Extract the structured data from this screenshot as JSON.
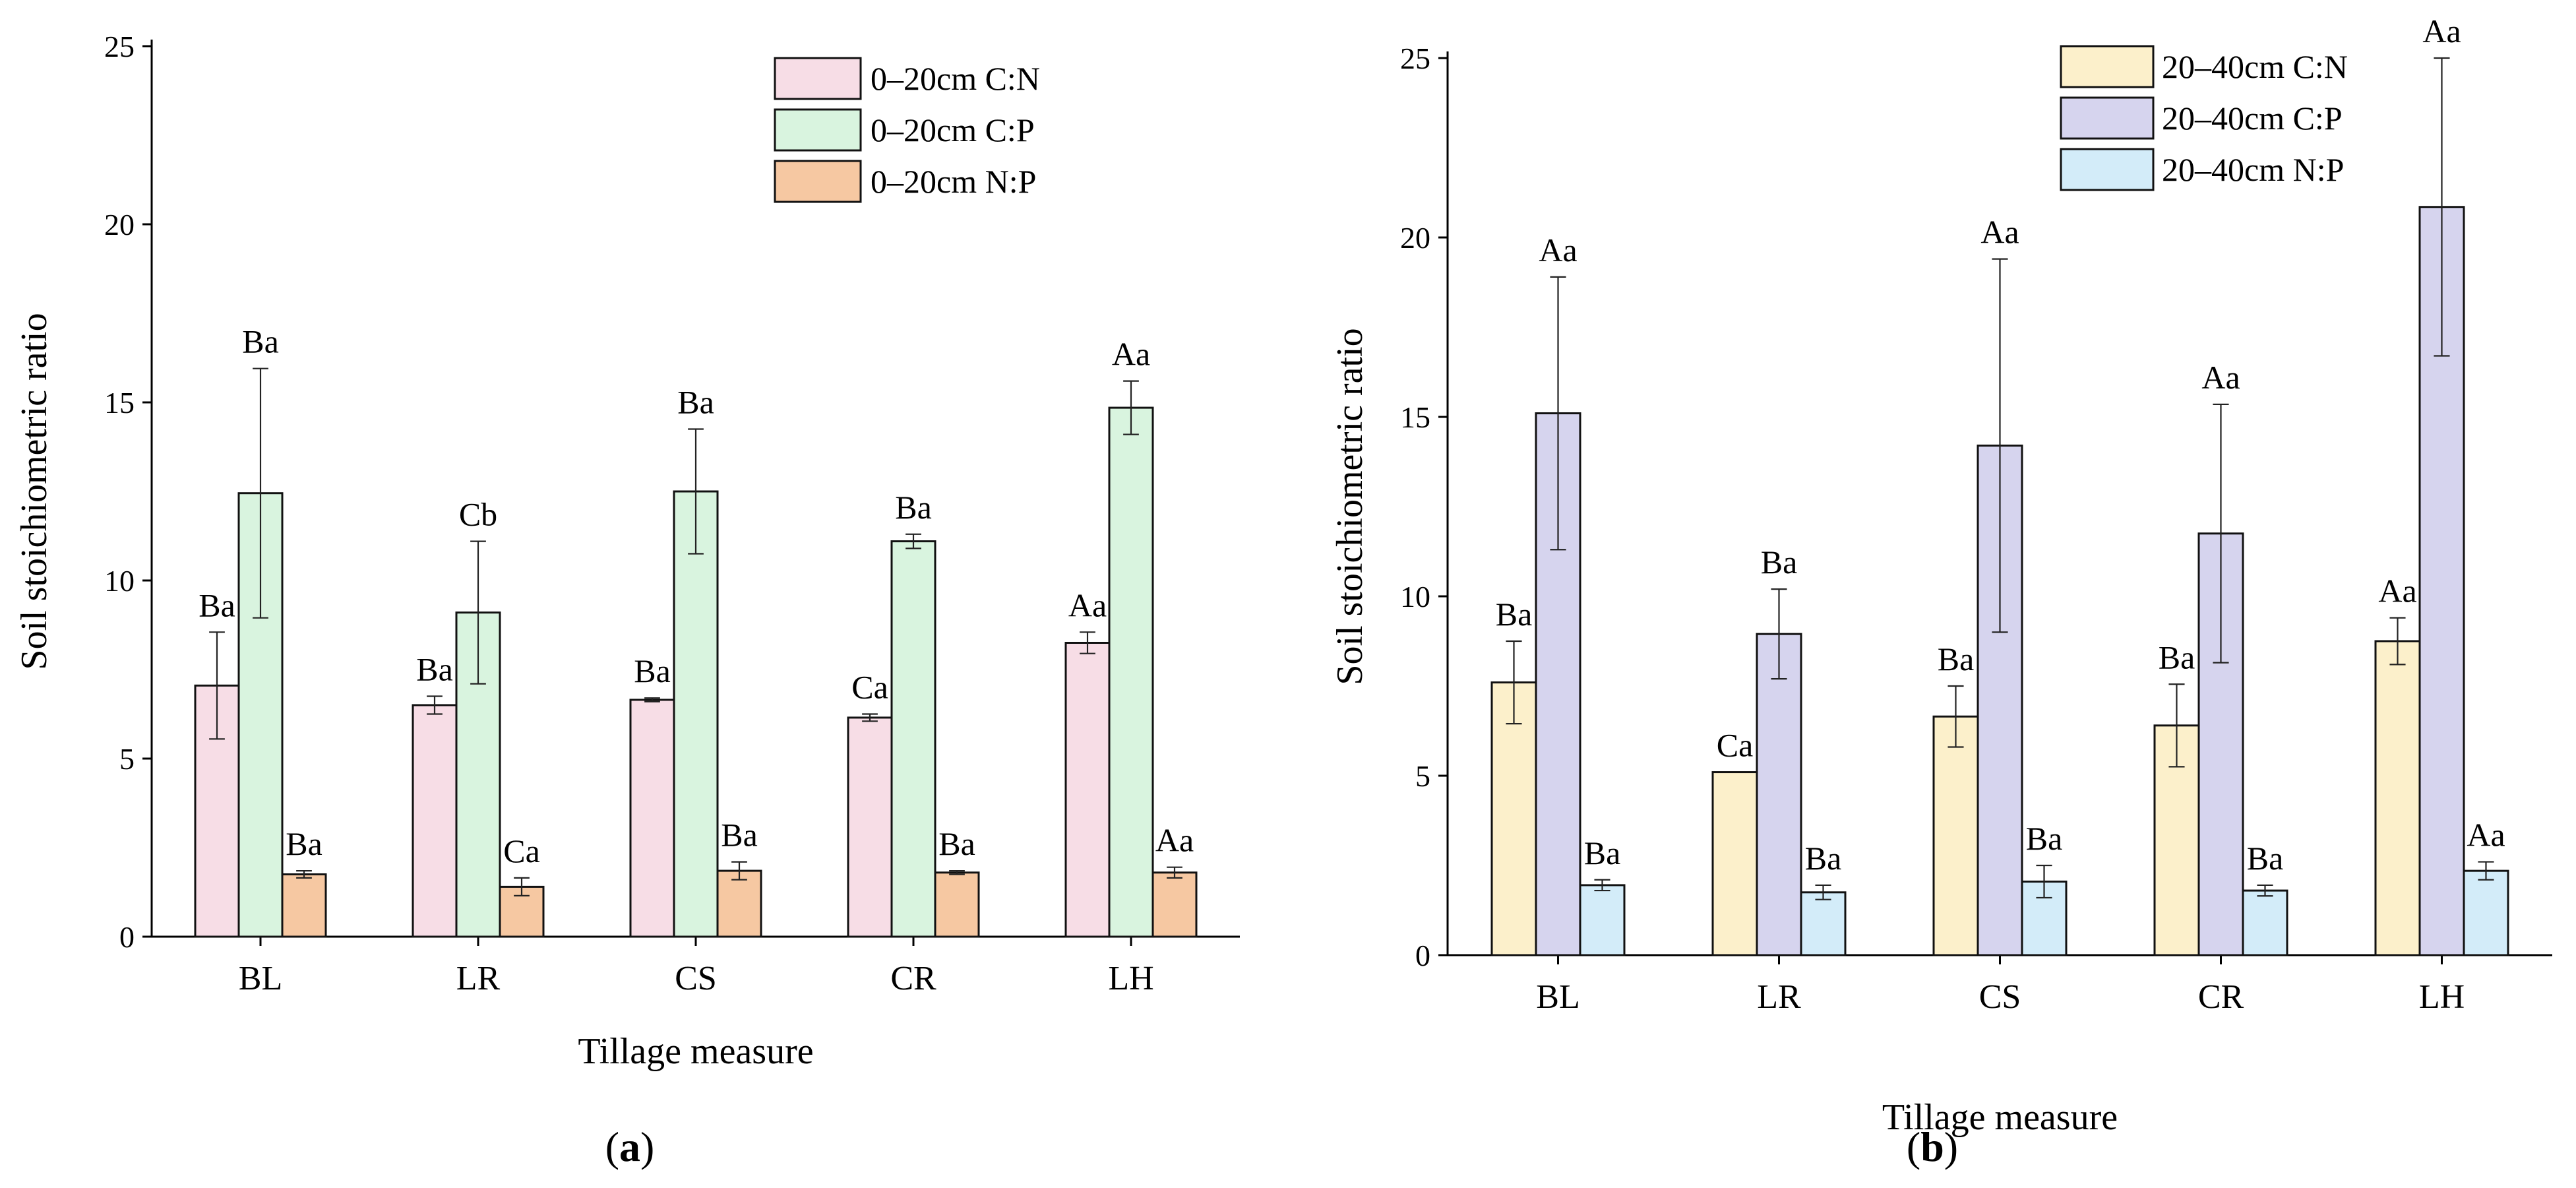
{
  "chart_data": [
    {
      "type": "bar",
      "panel_label": "a",
      "title": "",
      "xlabel": "Tillage measure",
      "ylabel": "Soil stoichiometric ratio",
      "ylim": [
        0,
        25
      ],
      "yticks": [
        0,
        5,
        10,
        15,
        20,
        25
      ],
      "categories": [
        "BL",
        "LR",
        "CS",
        "CR",
        "LH"
      ],
      "legend_position": "top-right",
      "series": [
        {
          "name": "0–20cm C:N",
          "color": "#f7dde6",
          "values": [
            7.05,
            6.5,
            6.65,
            6.15,
            8.25
          ],
          "errors": [
            1.5,
            0.25,
            0.05,
            0.1,
            0.3
          ],
          "labels": [
            "Ba",
            "Ba",
            "Ba",
            "Ca",
            "Aa"
          ]
        },
        {
          "name": "0–20cm C:P",
          "color": "#d9f4df",
          "values": [
            12.45,
            9.1,
            12.5,
            11.1,
            14.85
          ],
          "errors": [
            3.5,
            2.0,
            1.75,
            0.2,
            0.75
          ],
          "labels": [
            "Ba",
            "Cb",
            "Ba",
            "Ba",
            "Aa"
          ]
        },
        {
          "name": "0–20cm N:P",
          "color": "#f6c8a2",
          "values": [
            1.75,
            1.4,
            1.85,
            1.8,
            1.8
          ],
          "errors": [
            0.1,
            0.25,
            0.25,
            0.05,
            0.15
          ],
          "labels": [
            "Ba",
            "Ca",
            "Ba",
            "Ba",
            "Aa"
          ]
        }
      ]
    },
    {
      "type": "bar",
      "panel_label": "b",
      "title": "",
      "xlabel": "Tillage measure",
      "ylabel": "Soil stoichiometric ratio",
      "ylim": [
        0,
        25
      ],
      "yticks": [
        0,
        5,
        10,
        15,
        20,
        25
      ],
      "categories": [
        "BL",
        "LR",
        "CS",
        "CR",
        "LH"
      ],
      "legend_position": "top-right",
      "series": [
        {
          "name": "20–40cm C:N",
          "color": "#fcf0cb",
          "values": [
            7.6,
            5.1,
            6.65,
            6.4,
            8.75
          ],
          "errors": [
            1.15,
            0.0,
            0.85,
            1.15,
            0.65
          ],
          "labels": [
            "Ba",
            "Ca",
            "Ba",
            "Ba",
            "Aa"
          ]
        },
        {
          "name": "20–40cm C:P",
          "color": "#d6d4ee",
          "values": [
            15.1,
            8.95,
            14.2,
            11.75,
            20.85
          ],
          "errors": [
            3.8,
            1.25,
            5.2,
            3.6,
            4.15
          ],
          "labels": [
            "Aa",
            "Ba",
            "Aa",
            "Aa",
            "Aa"
          ]
        },
        {
          "name": "20–40cm N:P",
          "color": "#d3ecf9",
          "values": [
            1.95,
            1.75,
            2.05,
            1.8,
            2.35
          ],
          "errors": [
            0.15,
            0.2,
            0.45,
            0.15,
            0.25
          ],
          "labels": [
            "Ba",
            "Ba",
            "Ba",
            "Ba",
            "Aa"
          ]
        }
      ]
    }
  ]
}
